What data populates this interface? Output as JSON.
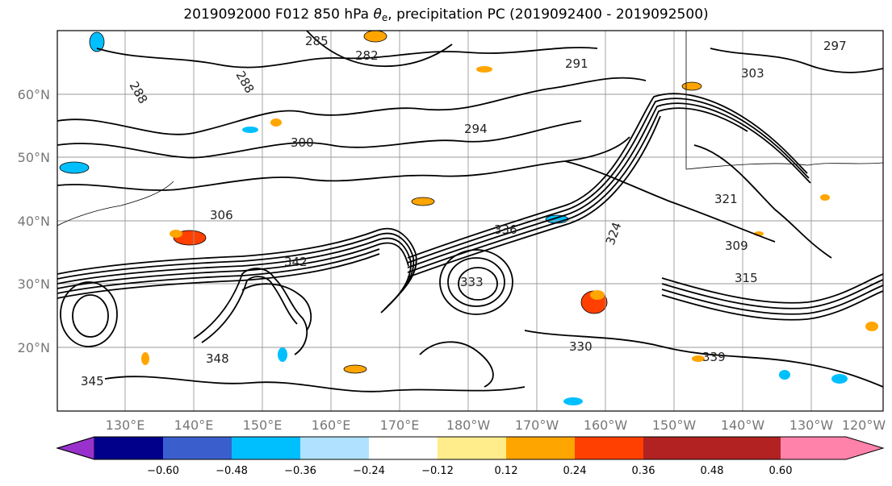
{
  "title": {
    "prefix": "2019092000 F012 850 hPa ",
    "theta": "θ",
    "theta_sub": "e",
    "suffix": ", precipitation PC (2019092400 - 2019092500)"
  },
  "map": {
    "lon_ticks": [
      "130°E",
      "140°E",
      "150°E",
      "160°E",
      "170°E",
      "180°W",
      "170°W",
      "160°W",
      "150°W",
      "140°W",
      "130°W",
      "120°W"
    ],
    "lat_ticks": [
      "60°N",
      "50°N",
      "40°N",
      "30°N",
      "20°N"
    ],
    "contour_labels": [
      "285",
      "282",
      "288",
      "291",
      "288",
      "294",
      "303",
      "300",
      "306",
      "321",
      "336",
      "342",
      "345",
      "348",
      "339",
      "324",
      "315",
      "309",
      "330",
      "333",
      "297"
    ]
  },
  "colorbar": {
    "colors": [
      "#9932CC",
      "#00008B",
      "#3A5FCD",
      "#00BFFF",
      "#B0E2FF",
      "#FFFFFF",
      "#FFEC8B",
      "#FFA500",
      "#FF4000",
      "#B22222",
      "#FF82AB"
    ],
    "tick_labels": [
      "−0.60",
      "−0.48",
      "−0.36",
      "−0.24",
      "−0.12",
      "0.12",
      "0.24",
      "0.36",
      "0.48",
      "0.60"
    ]
  }
}
